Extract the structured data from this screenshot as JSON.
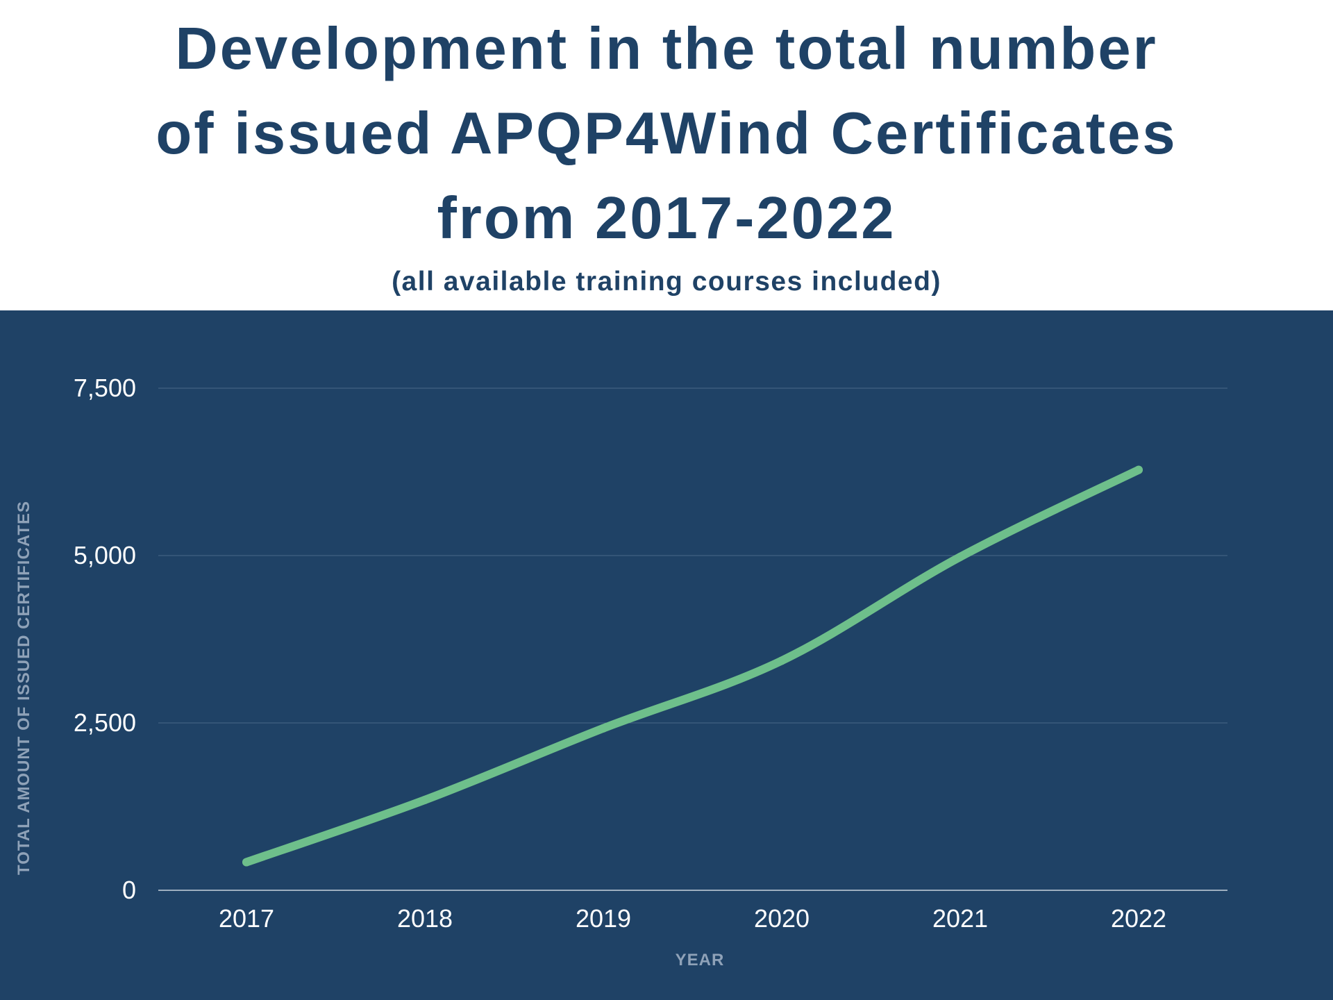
{
  "header": {
    "title_lines": [
      "Development in the total number",
      "of issued APQP4Wind Certificates",
      "from 2017-2022"
    ],
    "subtitle": "(all available training courses included)"
  },
  "colors": {
    "title": "#1f4266",
    "panel_background": "#1f4266",
    "line": "#6ebf8b",
    "gridline": "#4a6888",
    "axis_title": "#8fa2b8"
  },
  "chart_data": {
    "type": "line",
    "categories": [
      "2017",
      "2018",
      "2019",
      "2020",
      "2021",
      "2022"
    ],
    "series": [
      {
        "values": [
          420,
          1350,
          2420,
          3430,
          4980,
          6280
        ]
      }
    ],
    "xlabel": "YEAR",
    "ylabel": "TOTAL AMOUNT OF ISSUED CERTIFICATES",
    "ylim": [
      0,
      7500
    ],
    "yticks": [
      0,
      2500,
      5000,
      7500
    ],
    "ytick_labels": [
      "0",
      "2,500",
      "5,000",
      "7,500"
    ],
    "grid": true,
    "smooth": true
  }
}
